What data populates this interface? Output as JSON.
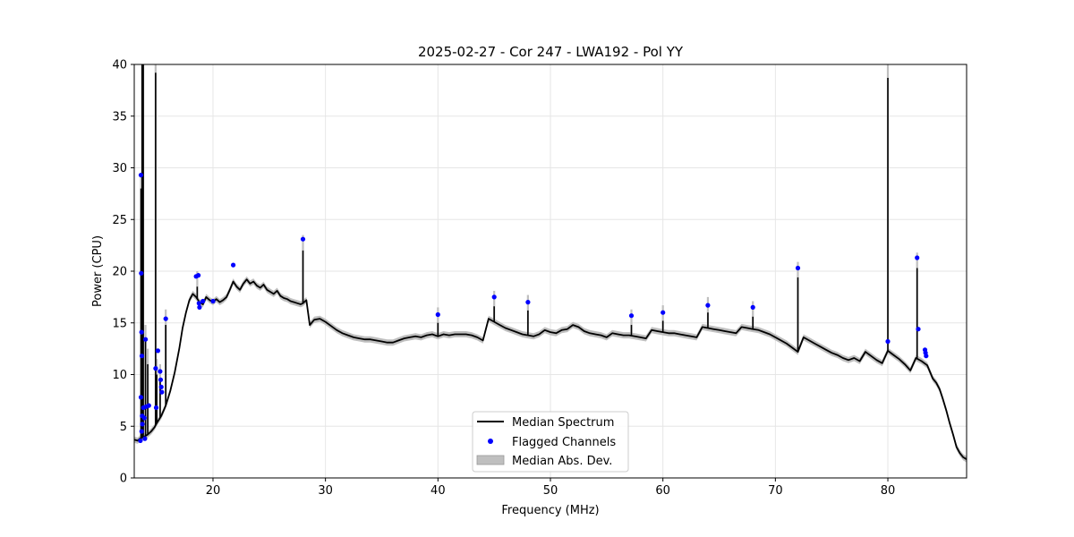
{
  "chart_data": {
    "type": "line",
    "title": "2025-02-27 - Cor 247 - LWA192 - Pol YY",
    "xlabel": "Frequency (MHz)",
    "ylabel": "Power (CPU)",
    "xlim": [
      13.0,
      87.0
    ],
    "ylim": [
      0,
      40
    ],
    "xticks": [
      20,
      30,
      40,
      50,
      60,
      70,
      80
    ],
    "yticks": [
      0,
      5,
      10,
      15,
      20,
      25,
      30,
      35,
      40
    ],
    "grid": true,
    "legend_position": "bottom-center",
    "colors": {
      "median": "#000000",
      "flagged": "#0000ff",
      "mad": "#bfbfbf"
    },
    "legend": [
      {
        "label": "Median Spectrum",
        "kind": "line"
      },
      {
        "label": "Flagged Channels",
        "kind": "marker"
      },
      {
        "label": "Median Abs. Dev.",
        "kind": "patch"
      }
    ],
    "mad_halfwidth": 0.3,
    "series": [
      {
        "name": "Median Spectrum",
        "x": [
          13.0,
          13.3,
          13.5,
          13.7,
          13.9,
          14.2,
          14.5,
          14.8,
          15.0,
          15.4,
          15.8,
          16.2,
          16.6,
          17.0,
          17.3,
          17.6,
          17.9,
          18.2,
          18.5,
          18.8,
          19.1,
          19.4,
          19.7,
          20.0,
          20.3,
          20.6,
          20.9,
          21.2,
          21.5,
          21.8,
          22.1,
          22.4,
          22.7,
          23.0,
          23.3,
          23.6,
          23.9,
          24.2,
          24.5,
          24.8,
          25.1,
          25.4,
          25.7,
          26.0,
          26.3,
          26.6,
          26.9,
          27.2,
          27.5,
          27.8,
          28.0,
          28.3,
          28.6,
          29.0,
          29.5,
          30.0,
          30.5,
          31.0,
          31.5,
          32.0,
          32.5,
          33.0,
          33.5,
          34.0,
          34.5,
          35.0,
          35.5,
          36.0,
          36.5,
          37.0,
          37.5,
          38.0,
          38.5,
          39.0,
          39.5,
          40.0,
          40.5,
          41.0,
          41.5,
          42.0,
          42.5,
          43.0,
          43.5,
          44.0,
          44.5,
          45.0,
          45.5,
          46.0,
          46.5,
          47.0,
          47.5,
          48.0,
          48.5,
          49.0,
          49.5,
          50.0,
          50.5,
          51.0,
          51.5,
          52.0,
          52.5,
          53.0,
          53.5,
          54.0,
          54.5,
          55.0,
          55.5,
          56.0,
          56.5,
          57.0,
          57.5,
          58.0,
          58.5,
          59.0,
          59.5,
          60.0,
          60.5,
          61.0,
          61.5,
          62.0,
          62.5,
          63.0,
          63.5,
          64.0,
          64.5,
          65.0,
          65.5,
          66.0,
          66.5,
          67.0,
          67.5,
          68.0,
          68.5,
          69.0,
          69.5,
          70.0,
          70.5,
          71.0,
          71.5,
          72.0,
          72.5,
          73.0,
          73.5,
          74.0,
          74.5,
          75.0,
          75.5,
          76.0,
          76.5,
          77.0,
          77.5,
          78.0,
          78.5,
          79.0,
          79.5,
          80.0,
          80.5,
          81.0,
          81.5,
          82.0,
          82.5,
          83.0,
          83.5,
          84.0,
          84.3,
          84.6,
          84.9,
          85.2,
          85.5,
          85.8,
          86.1,
          86.4,
          86.7,
          87.0
        ],
        "y": [
          3.7,
          3.6,
          3.8,
          3.9,
          4.0,
          4.2,
          4.5,
          4.9,
          5.3,
          6.0,
          7.0,
          8.4,
          10.2,
          12.5,
          14.5,
          16.0,
          17.2,
          17.8,
          17.5,
          17.0,
          16.8,
          17.5,
          17.2,
          17.0,
          17.3,
          17.0,
          17.2,
          17.5,
          18.2,
          19.0,
          18.5,
          18.2,
          18.8,
          19.2,
          18.8,
          19.0,
          18.6,
          18.4,
          18.7,
          18.2,
          18.0,
          17.8,
          18.1,
          17.6,
          17.4,
          17.3,
          17.1,
          17.0,
          16.9,
          16.8,
          16.9,
          17.2,
          14.8,
          15.3,
          15.4,
          15.1,
          14.7,
          14.3,
          14.0,
          13.8,
          13.6,
          13.5,
          13.4,
          13.4,
          13.3,
          13.2,
          13.1,
          13.1,
          13.3,
          13.5,
          13.6,
          13.7,
          13.6,
          13.8,
          13.9,
          13.7,
          13.9,
          13.8,
          13.9,
          13.9,
          13.9,
          13.8,
          13.6,
          13.3,
          15.4,
          15.1,
          14.8,
          14.5,
          14.3,
          14.1,
          13.9,
          13.8,
          13.7,
          13.9,
          14.3,
          14.1,
          14.0,
          14.3,
          14.4,
          14.8,
          14.6,
          14.2,
          14.0,
          13.9,
          13.8,
          13.6,
          14.0,
          13.9,
          13.8,
          13.8,
          13.7,
          13.6,
          13.5,
          14.3,
          14.2,
          14.1,
          14.0,
          14.0,
          13.9,
          13.8,
          13.7,
          13.6,
          14.6,
          14.5,
          14.4,
          14.3,
          14.2,
          14.1,
          14.0,
          14.6,
          14.5,
          14.4,
          14.3,
          14.1,
          13.9,
          13.6,
          13.3,
          13.0,
          12.6,
          12.2,
          13.6,
          13.3,
          13.0,
          12.7,
          12.4,
          12.1,
          11.9,
          11.6,
          11.4,
          11.6,
          11.3,
          12.2,
          11.8,
          11.4,
          11.1,
          12.3,
          11.9,
          11.5,
          11.0,
          10.4,
          11.6,
          11.3,
          10.9,
          9.6,
          9.2,
          8.6,
          7.6,
          6.5,
          5.3,
          4.2,
          3.0,
          2.4,
          2.0,
          1.8
        ],
        "spikes": [
          {
            "x": 13.7,
            "y": 40.0
          },
          {
            "x": 13.8,
            "y": 40.0
          },
          {
            "x": 13.6,
            "y": 28.0
          },
          {
            "x": 14.0,
            "y": 13.3
          },
          {
            "x": 14.2,
            "y": 11.0
          },
          {
            "x": 14.9,
            "y": 39.2
          },
          {
            "x": 15.0,
            "y": 10.0
          },
          {
            "x": 15.3,
            "y": 9.5
          },
          {
            "x": 15.8,
            "y": 14.8
          },
          {
            "x": 18.6,
            "y": 18.5
          },
          {
            "x": 28.0,
            "y": 22.0
          },
          {
            "x": 40.0,
            "y": 15.0
          },
          {
            "x": 45.0,
            "y": 16.6
          },
          {
            "x": 48.0,
            "y": 16.2
          },
          {
            "x": 57.2,
            "y": 14.8
          },
          {
            "x": 60.0,
            "y": 15.2
          },
          {
            "x": 64.0,
            "y": 16.0
          },
          {
            "x": 68.0,
            "y": 15.6
          },
          {
            "x": 72.0,
            "y": 19.4
          },
          {
            "x": 80.0,
            "y": 38.7
          },
          {
            "x": 82.6,
            "y": 20.3
          }
        ]
      },
      {
        "name": "Flagged Channels",
        "points": [
          {
            "x": 13.55,
            "y": 3.6
          },
          {
            "x": 13.6,
            "y": 29.3
          },
          {
            "x": 13.62,
            "y": 19.8
          },
          {
            "x": 13.65,
            "y": 14.1
          },
          {
            "x": 13.68,
            "y": 11.8
          },
          {
            "x": 13.6,
            "y": 7.8
          },
          {
            "x": 13.7,
            "y": 6.0
          },
          {
            "x": 13.72,
            "y": 5.2
          },
          {
            "x": 13.66,
            "y": 4.5
          },
          {
            "x": 13.8,
            "y": 6.8
          },
          {
            "x": 13.9,
            "y": 5.8
          },
          {
            "x": 13.95,
            "y": 3.8
          },
          {
            "x": 14.0,
            "y": 13.4
          },
          {
            "x": 14.05,
            "y": 6.9
          },
          {
            "x": 14.3,
            "y": 7.0
          },
          {
            "x": 14.9,
            "y": 10.6
          },
          {
            "x": 14.95,
            "y": 6.8
          },
          {
            "x": 15.1,
            "y": 12.3
          },
          {
            "x": 15.3,
            "y": 10.3
          },
          {
            "x": 15.35,
            "y": 9.5
          },
          {
            "x": 15.4,
            "y": 8.8
          },
          {
            "x": 15.45,
            "y": 8.3
          },
          {
            "x": 15.8,
            "y": 15.4
          },
          {
            "x": 18.5,
            "y": 19.5
          },
          {
            "x": 18.7,
            "y": 19.6
          },
          {
            "x": 18.75,
            "y": 16.9
          },
          {
            "x": 18.8,
            "y": 16.5
          },
          {
            "x": 19.1,
            "y": 17.1
          },
          {
            "x": 20.0,
            "y": 17.1
          },
          {
            "x": 21.8,
            "y": 20.6
          },
          {
            "x": 28.0,
            "y": 23.1
          },
          {
            "x": 40.0,
            "y": 15.8
          },
          {
            "x": 45.0,
            "y": 17.5
          },
          {
            "x": 48.0,
            "y": 17.0
          },
          {
            "x": 57.2,
            "y": 15.7
          },
          {
            "x": 60.0,
            "y": 16.0
          },
          {
            "x": 64.0,
            "y": 16.7
          },
          {
            "x": 68.0,
            "y": 16.5
          },
          {
            "x": 72.0,
            "y": 20.3
          },
          {
            "x": 80.0,
            "y": 13.2
          },
          {
            "x": 82.6,
            "y": 21.3
          },
          {
            "x": 82.7,
            "y": 14.4
          },
          {
            "x": 83.3,
            "y": 12.4
          },
          {
            "x": 83.35,
            "y": 12.1
          },
          {
            "x": 83.4,
            "y": 11.8
          }
        ]
      }
    ]
  }
}
